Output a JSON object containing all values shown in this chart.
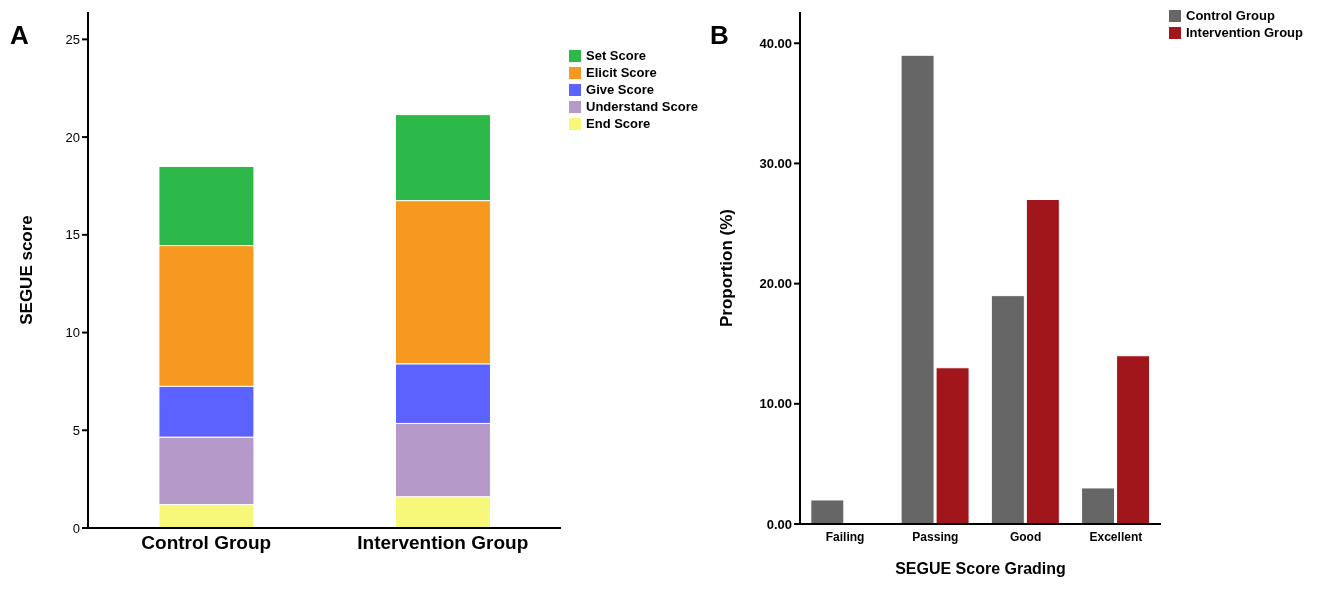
{
  "chart_data": [
    {
      "type": "bar",
      "title": "A",
      "ylabel": "SEGUE score",
      "categories": [
        "Control Group",
        "Intervention Group"
      ],
      "stacked": true,
      "series": [
        {
          "name": "End Score",
          "color": "#f7f77a",
          "values": [
            1.2,
            1.6
          ]
        },
        {
          "name": "Understand Score",
          "color": "#b59ac9",
          "values": [
            3.45,
            3.75
          ]
        },
        {
          "name": "Give Score",
          "color": "#5c62ff",
          "values": [
            2.6,
            3.05
          ]
        },
        {
          "name": "Elicit Score",
          "color": "#f7991f",
          "values": [
            7.2,
            8.35
          ]
        },
        {
          "name": "Set Score",
          "color": "#2db84a",
          "values": [
            4.05,
            4.4
          ]
        }
      ],
      "ylim": [
        0,
        26.4
      ],
      "yticks": [
        0,
        5,
        10,
        15,
        20,
        25
      ],
      "grid": false,
      "legend": "top right"
    },
    {
      "type": "bar",
      "title": "B",
      "xlabel": "SEGUE Score Grading",
      "ylabel": "Proportion (%)",
      "categories": [
        "Failing",
        "Passing",
        "Good",
        "Excellent"
      ],
      "series": [
        {
          "name": "Control Group",
          "color": "#666666",
          "values": [
            2,
            39,
            19,
            3
          ]
        },
        {
          "name": "Intervention Group",
          "color": "#a0161b",
          "values": [
            0,
            13,
            27,
            14
          ]
        }
      ],
      "ylim": [
        0,
        42.6
      ],
      "yticks": [
        {
          "value": 0,
          "label": "0.00"
        },
        {
          "value": 10,
          "label": "10.00"
        },
        {
          "value": 20,
          "label": "20.00"
        },
        {
          "value": 30,
          "label": "30.00"
        },
        {
          "value": 40,
          "label": "40.00"
        }
      ],
      "grid": false,
      "legend": "right"
    }
  ]
}
